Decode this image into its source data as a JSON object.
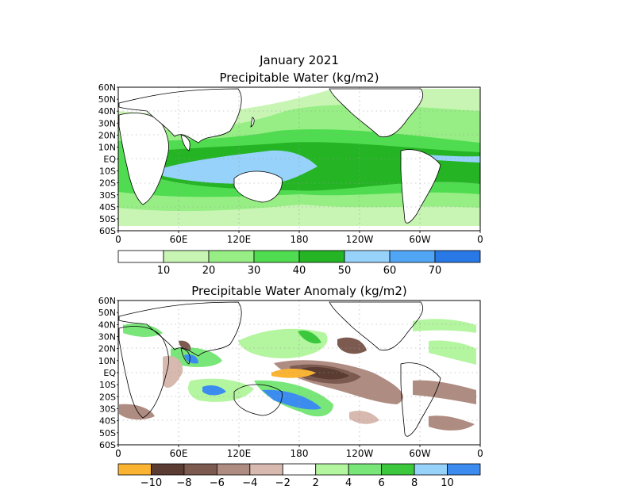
{
  "title": "January 2021",
  "panels": [
    {
      "id": "pw",
      "title": "Precipitable Water (kg/m2)",
      "lat_ticks": [
        "60N",
        "50N",
        "40N",
        "30N",
        "20N",
        "10N",
        "EQ",
        "10S",
        "20S",
        "30S",
        "40S",
        "50S",
        "60S"
      ],
      "lon_ticks": [
        "0",
        "60E",
        "120E",
        "180",
        "120W",
        "60W",
        "0"
      ],
      "colorbar": {
        "colors": [
          "#ffffff",
          "#c8f5b4",
          "#96ee84",
          "#50dc50",
          "#24b424",
          "#96d2fa",
          "#50a5f5",
          "#2878e6"
        ],
        "labels": [
          "10",
          "20",
          "30",
          "40",
          "50",
          "60",
          "70"
        ]
      }
    },
    {
      "id": "pwa",
      "title": "Precipitable Water Anomaly (kg/m2)",
      "lat_ticks": [
        "60N",
        "50N",
        "40N",
        "30N",
        "20N",
        "10N",
        "EQ",
        "10S",
        "20S",
        "30S",
        "40S",
        "50S",
        "60S"
      ],
      "lon_ticks": [
        "0",
        "60E",
        "120E",
        "180",
        "120W",
        "60W",
        "0"
      ],
      "colorbar": {
        "colors": [
          "#fab432",
          "#5a3c32",
          "#7d5a50",
          "#af8c82",
          "#d7b9af",
          "#ffffff",
          "#b4f5a0",
          "#78e678",
          "#3cc83c",
          "#96d2fa",
          "#3c8cf0"
        ],
        "labels": [
          "−10",
          "−8",
          "−6",
          "−4",
          "−2",
          "2",
          "4",
          "6",
          "8",
          "10"
        ]
      }
    }
  ]
}
